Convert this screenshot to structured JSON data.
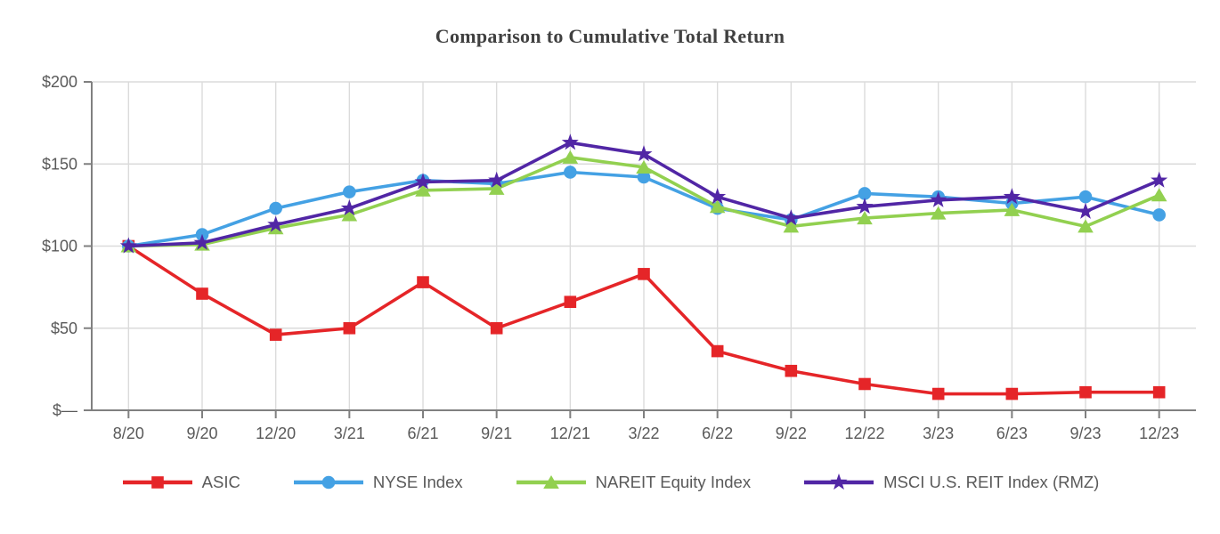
{
  "chart_data": {
    "type": "line",
    "title": "Comparison to Cumulative Total Return",
    "categories": [
      "8/20",
      "9/20",
      "12/20",
      "3/21",
      "6/21",
      "9/21",
      "12/21",
      "3/22",
      "6/22",
      "9/22",
      "12/22",
      "3/23",
      "6/23",
      "9/23",
      "12/23"
    ],
    "series": [
      {
        "name": "ASIC",
        "marker": "square",
        "color": "#E52528",
        "values": [
          100,
          71,
          46,
          50,
          78,
          50,
          66,
          83,
          36,
          24,
          16,
          10,
          10,
          11,
          11
        ]
      },
      {
        "name": "NYSE Index",
        "marker": "circle",
        "color": "#44A1E4",
        "values": [
          100,
          107,
          123,
          133,
          140,
          138,
          145,
          142,
          123,
          116,
          132,
          130,
          126,
          130,
          119
        ]
      },
      {
        "name": "NAREIT Equity Index",
        "marker": "triangle",
        "color": "#92D050",
        "values": [
          100,
          101,
          111,
          119,
          134,
          135,
          154,
          148,
          124,
          112,
          117,
          120,
          122,
          112,
          131
        ]
      },
      {
        "name": "MSCI U.S. REIT Index (RMZ)",
        "marker": "star",
        "color": "#5126A5",
        "values": [
          100,
          102,
          113,
          123,
          139,
          140,
          163,
          156,
          130,
          117,
          124,
          128,
          130,
          121,
          140
        ]
      }
    ],
    "ylim": [
      0,
      200
    ],
    "y_ticks": [
      0,
      50,
      100,
      150,
      200
    ],
    "y_tick_labels": [
      "$—",
      "$50",
      "$100",
      "$150",
      "$200"
    ],
    "xlabel": "",
    "ylabel": "",
    "grid": "both",
    "legend_position": "bottom",
    "colors": {
      "axis": "#808080",
      "grid": "#DBDBDB",
      "tick_labels": "#595959",
      "title": "#404040"
    }
  }
}
